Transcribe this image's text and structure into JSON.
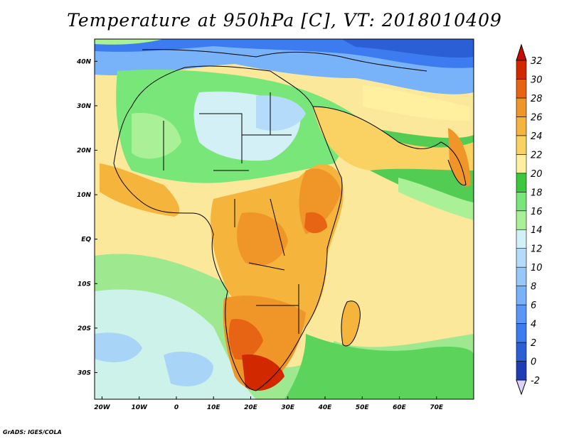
{
  "title": "Temperature at 950hPa [C], VT: 2018010409",
  "credit": "GrADS: IGES/COLA",
  "map": {
    "lat_range": [
      -36,
      45
    ],
    "lon_range": [
      -22,
      80
    ],
    "lat_ticks": [
      {
        "value": 40,
        "label": "40N"
      },
      {
        "value": 30,
        "label": "30N"
      },
      {
        "value": 20,
        "label": "20N"
      },
      {
        "value": 10,
        "label": "10N"
      },
      {
        "value": 0,
        "label": "EQ"
      },
      {
        "value": -10,
        "label": "10S"
      },
      {
        "value": -20,
        "label": "20S"
      },
      {
        "value": -30,
        "label": "30S"
      }
    ],
    "lon_ticks": [
      {
        "value": -20,
        "label": "20W"
      },
      {
        "value": -10,
        "label": "10W"
      },
      {
        "value": 0,
        "label": "0"
      },
      {
        "value": 10,
        "label": "10E"
      },
      {
        "value": 20,
        "label": "20E"
      },
      {
        "value": 30,
        "label": "30E"
      },
      {
        "value": 40,
        "label": "40E"
      },
      {
        "value": 50,
        "label": "50E"
      },
      {
        "value": 60,
        "label": "60E"
      },
      {
        "value": 70,
        "label": "70E"
      }
    ]
  },
  "colorbar": {
    "levels": [
      {
        "label": "-2",
        "color": "#1a0f7a"
      },
      {
        "label": "0",
        "color": "#1e3cb4"
      },
      {
        "label": "2",
        "color": "#2a5fd6"
      },
      {
        "label": "4",
        "color": "#3c7cf0"
      },
      {
        "label": "6",
        "color": "#5a96f5"
      },
      {
        "label": "8",
        "color": "#78b2f8"
      },
      {
        "label": "10",
        "color": "#96c8fa"
      },
      {
        "label": "12",
        "color": "#b4dcfa"
      },
      {
        "label": "14",
        "color": "#d2f0f5"
      },
      {
        "label": "16",
        "color": "#aaf096"
      },
      {
        "label": "18",
        "color": "#78e678"
      },
      {
        "label": "20",
        "color": "#3cc83c"
      },
      {
        "label": "22",
        "color": "#fff0a0"
      },
      {
        "label": "24",
        "color": "#fad264"
      },
      {
        "label": "26",
        "color": "#f5b43c"
      },
      {
        "label": "28",
        "color": "#f09628"
      },
      {
        "label": "30",
        "color": "#e66414"
      },
      {
        "label": "32",
        "color": "#d22800"
      }
    ],
    "over_color": "#c80a00",
    "under_color": "#dcd2fa"
  }
}
